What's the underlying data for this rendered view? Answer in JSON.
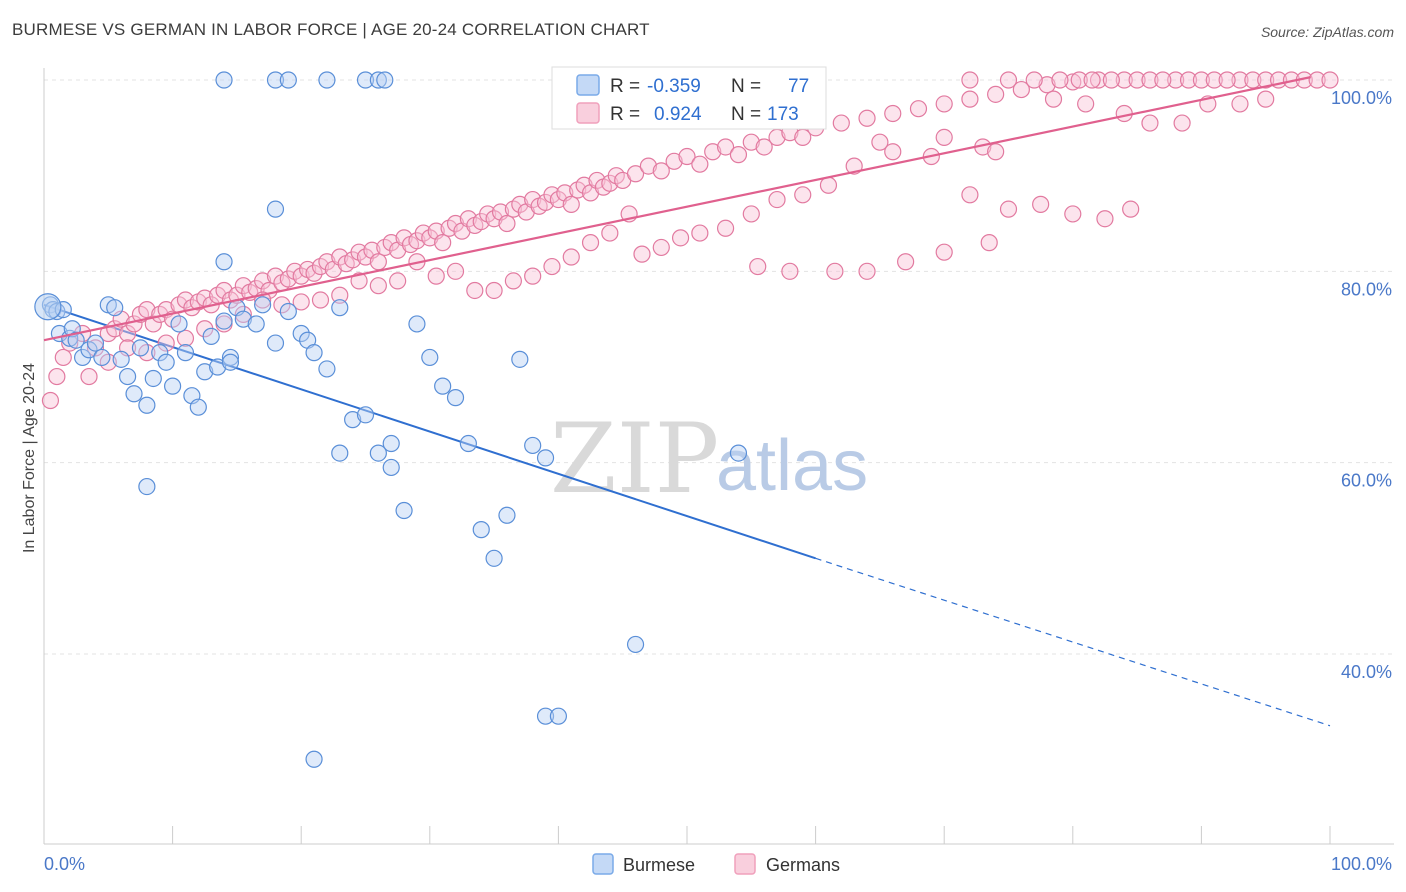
{
  "header": {
    "title": "BURMESE VS GERMAN IN LABOR FORCE | AGE 20-24 CORRELATION CHART",
    "source": "Source: ZipAtlas.com"
  },
  "watermark": {
    "zip": "ZIP",
    "atlas": "atlas"
  },
  "legend_top": {
    "rows": [
      {
        "r_label": "R =",
        "r_value": "-0.359",
        "n_label": "N =",
        "n_value": "77",
        "color": "#7aaae8"
      },
      {
        "r_label": "R =",
        "r_value": "0.924",
        "n_label": "N =",
        "n_value": "173",
        "color": "#f0a0bc"
      }
    ]
  },
  "legend_bottom": [
    {
      "label": "Burmese",
      "color": "#7aaae8"
    },
    {
      "label": "Germans",
      "color": "#f0a0bc"
    }
  ],
  "chart_data": {
    "type": "scatter",
    "title": "BURMESE VS GERMAN IN LABOR FORCE | AGE 20-24 CORRELATION CHART",
    "xlabel": "",
    "ylabel": "In Labor Force | Age 20-24",
    "xlim": [
      0,
      100
    ],
    "ylim": [
      20,
      104
    ],
    "x_tick_labels": [
      {
        "value": 0,
        "label": "0.0%"
      },
      {
        "value": 100,
        "label": "100.0%"
      }
    ],
    "y_tick_labels": [
      {
        "value": 40,
        "label": "40.0%"
      },
      {
        "value": 60,
        "label": "60.0%"
      },
      {
        "value": 80,
        "label": "80.0%"
      },
      {
        "value": 100,
        "label": "100.0%"
      }
    ],
    "grid": true,
    "series": [
      {
        "name": "Burmese",
        "color": "#7aaae8",
        "stroke": "#5a8fd8",
        "trend": {
          "x0": 0,
          "y0": 76.5,
          "x1": 60,
          "y1": 50.0,
          "dash_to_x": 100,
          "dash_to_y": 32.5,
          "color": "#2f6fd0"
        },
        "points": [
          [
            0.5,
            76.5
          ],
          [
            0.7,
            76.0
          ],
          [
            1.0,
            75.8
          ],
          [
            1.2,
            73.5
          ],
          [
            1.5,
            76.0
          ],
          [
            2.0,
            73.0
          ],
          [
            2.2,
            74.0
          ],
          [
            2.5,
            72.8
          ],
          [
            3.0,
            71.0
          ],
          [
            3.5,
            71.8
          ],
          [
            4.0,
            72.5
          ],
          [
            4.5,
            71.0
          ],
          [
            5.0,
            76.5
          ],
          [
            5.5,
            76.2
          ],
          [
            6.0,
            70.8
          ],
          [
            6.5,
            69.0
          ],
          [
            7.0,
            67.2
          ],
          [
            7.5,
            72.0
          ],
          [
            8.0,
            66.0
          ],
          [
            8.5,
            68.8
          ],
          [
            9.0,
            71.5
          ],
          [
            9.5,
            70.5
          ],
          [
            10.0,
            68.0
          ],
          [
            10.5,
            74.5
          ],
          [
            11.0,
            71.5
          ],
          [
            11.5,
            67.0
          ],
          [
            12.0,
            65.8
          ],
          [
            12.5,
            69.5
          ],
          [
            13.0,
            73.2
          ],
          [
            13.5,
            70.0
          ],
          [
            14.0,
            74.8
          ],
          [
            14.5,
            71.0
          ],
          [
            15.0,
            76.2
          ],
          [
            15.5,
            75.0
          ],
          [
            16.5,
            74.5
          ],
          [
            17.0,
            76.5
          ],
          [
            18.0,
            72.5
          ],
          [
            19.0,
            75.8
          ],
          [
            20.0,
            73.5
          ],
          [
            20.5,
            72.8
          ],
          [
            21.0,
            71.5
          ],
          [
            22.0,
            69.8
          ],
          [
            23.0,
            76.2
          ],
          [
            24.0,
            64.5
          ],
          [
            25.0,
            65.0
          ],
          [
            26.0,
            61.0
          ],
          [
            27.0,
            59.5
          ],
          [
            28.0,
            55.0
          ],
          [
            29.0,
            74.5
          ],
          [
            30.0,
            71.0
          ],
          [
            31.0,
            68.0
          ],
          [
            32.0,
            66.8
          ],
          [
            33.0,
            62.0
          ],
          [
            34.0,
            53.0
          ],
          [
            35.0,
            50.0
          ],
          [
            36.0,
            54.5
          ],
          [
            37.0,
            70.8
          ],
          [
            38.0,
            61.8
          ],
          [
            39.0,
            60.5
          ],
          [
            8.0,
            57.5
          ],
          [
            14.0,
            81.0
          ],
          [
            14.5,
            70.5
          ],
          [
            18.0,
            86.5
          ],
          [
            14.0,
            100
          ],
          [
            18.0,
            100
          ],
          [
            19.0,
            100
          ],
          [
            22.0,
            100
          ],
          [
            25.0,
            100
          ],
          [
            26.0,
            100
          ],
          [
            26.5,
            100
          ],
          [
            23.0,
            61.0
          ],
          [
            27.0,
            62.0
          ],
          [
            46.0,
            41.0
          ],
          [
            39.0,
            33.5
          ],
          [
            40.0,
            33.5
          ],
          [
            21.0,
            29.0
          ],
          [
            54.0,
            61.0
          ]
        ]
      },
      {
        "name": "Germans",
        "color": "#f0a0bc",
        "stroke": "#e27aa0",
        "trend": {
          "x0": 0,
          "y0": 72.8,
          "x1": 100,
          "y1": 100.3,
          "color": "#e0608e"
        },
        "points": [
          [
            0.5,
            66.5
          ],
          [
            1.0,
            69.0
          ],
          [
            1.5,
            71.0
          ],
          [
            2.0,
            72.5
          ],
          [
            3.0,
            73.5
          ],
          [
            3.5,
            69.0
          ],
          [
            4.0,
            72.0
          ],
          [
            5.0,
            73.5
          ],
          [
            5.5,
            74.0
          ],
          [
            6.0,
            75.0
          ],
          [
            6.5,
            73.5
          ],
          [
            7.0,
            74.5
          ],
          [
            7.5,
            75.5
          ],
          [
            8.0,
            76.0
          ],
          [
            8.5,
            74.5
          ],
          [
            9.0,
            75.5
          ],
          [
            9.5,
            76.0
          ],
          [
            10.0,
            75.0
          ],
          [
            10.5,
            76.5
          ],
          [
            11.0,
            77.0
          ],
          [
            11.5,
            76.2
          ],
          [
            12.0,
            76.8
          ],
          [
            12.5,
            77.2
          ],
          [
            13.0,
            76.5
          ],
          [
            13.5,
            77.5
          ],
          [
            14.0,
            78.0
          ],
          [
            14.5,
            77.0
          ],
          [
            15.0,
            77.5
          ],
          [
            15.5,
            78.5
          ],
          [
            16.0,
            77.8
          ],
          [
            16.5,
            78.2
          ],
          [
            17.0,
            79.0
          ],
          [
            17.5,
            78.0
          ],
          [
            18.0,
            79.5
          ],
          [
            18.5,
            78.8
          ],
          [
            19.0,
            79.2
          ],
          [
            19.5,
            80.0
          ],
          [
            20.0,
            79.5
          ],
          [
            20.5,
            80.2
          ],
          [
            21.0,
            79.8
          ],
          [
            21.5,
            80.5
          ],
          [
            22.0,
            81.0
          ],
          [
            22.5,
            80.2
          ],
          [
            23.0,
            81.5
          ],
          [
            23.5,
            80.8
          ],
          [
            24.0,
            81.2
          ],
          [
            24.5,
            82.0
          ],
          [
            25.0,
            81.5
          ],
          [
            25.5,
            82.2
          ],
          [
            26.0,
            81.0
          ],
          [
            26.5,
            82.5
          ],
          [
            27.0,
            83.0
          ],
          [
            27.5,
            82.2
          ],
          [
            28.0,
            83.5
          ],
          [
            28.5,
            82.8
          ],
          [
            29.0,
            83.2
          ],
          [
            29.5,
            84.0
          ],
          [
            30.0,
            83.5
          ],
          [
            30.5,
            84.2
          ],
          [
            31.0,
            83.0
          ],
          [
            31.5,
            84.5
          ],
          [
            32.0,
            85.0
          ],
          [
            32.5,
            84.2
          ],
          [
            33.0,
            85.5
          ],
          [
            33.5,
            84.8
          ],
          [
            34.0,
            85.2
          ],
          [
            34.5,
            86.0
          ],
          [
            35.0,
            85.5
          ],
          [
            35.5,
            86.2
          ],
          [
            36.0,
            85.0
          ],
          [
            36.5,
            86.5
          ],
          [
            37.0,
            87.0
          ],
          [
            37.5,
            86.2
          ],
          [
            38.0,
            87.5
          ],
          [
            38.5,
            86.8
          ],
          [
            39.0,
            87.2
          ],
          [
            39.5,
            88.0
          ],
          [
            40.0,
            87.5
          ],
          [
            40.5,
            88.2
          ],
          [
            41.0,
            87.0
          ],
          [
            41.5,
            88.5
          ],
          [
            42.0,
            89.0
          ],
          [
            42.5,
            88.2
          ],
          [
            43.0,
            89.5
          ],
          [
            43.5,
            88.8
          ],
          [
            44.0,
            89.2
          ],
          [
            44.5,
            90.0
          ],
          [
            45.0,
            89.5
          ],
          [
            46.0,
            90.2
          ],
          [
            47.0,
            91.0
          ],
          [
            48.0,
            90.5
          ],
          [
            49.0,
            91.5
          ],
          [
            50.0,
            92.0
          ],
          [
            51.0,
            91.2
          ],
          [
            52.0,
            92.5
          ],
          [
            53.0,
            93.0
          ],
          [
            54.0,
            92.2
          ],
          [
            55.0,
            93.5
          ],
          [
            56.0,
            93.0
          ],
          [
            57.0,
            94.0
          ],
          [
            58.0,
            94.5
          ],
          [
            59.0,
            94.0
          ],
          [
            60.0,
            95.0
          ],
          [
            62.0,
            95.5
          ],
          [
            64.0,
            96.0
          ],
          [
            66.0,
            96.5
          ],
          [
            68.0,
            97.0
          ],
          [
            70.0,
            97.5
          ],
          [
            72.0,
            98.0
          ],
          [
            74.0,
            98.5
          ],
          [
            76.0,
            99.0
          ],
          [
            78.0,
            99.5
          ],
          [
            80.0,
            99.8
          ],
          [
            82.0,
            100
          ],
          [
            84.0,
            100
          ],
          [
            85.0,
            100
          ],
          [
            86.0,
            100
          ],
          [
            88.0,
            100
          ],
          [
            89.0,
            100
          ],
          [
            90.0,
            100
          ],
          [
            91.0,
            100
          ],
          [
            93.0,
            100
          ],
          [
            94.0,
            100
          ],
          [
            95.0,
            100
          ],
          [
            96.0,
            100
          ],
          [
            97.0,
            100
          ],
          [
            98.0,
            100
          ],
          [
            99.0,
            100
          ],
          [
            100.0,
            100
          ],
          [
            72.0,
            100
          ],
          [
            75.0,
            100
          ],
          [
            77.0,
            100
          ],
          [
            79.0,
            100
          ],
          [
            80.5,
            100
          ],
          [
            81.5,
            100
          ],
          [
            83.0,
            100
          ],
          [
            87.0,
            100
          ],
          [
            92.0,
            100
          ],
          [
            78.5,
            98.0
          ],
          [
            81.0,
            97.5
          ],
          [
            84.0,
            96.5
          ],
          [
            86.0,
            95.5
          ],
          [
            88.5,
            95.5
          ],
          [
            90.5,
            97.5
          ],
          [
            93.0,
            97.5
          ],
          [
            95.0,
            98.0
          ],
          [
            70.0,
            94.0
          ],
          [
            69.0,
            92.0
          ],
          [
            73.0,
            93.0
          ],
          [
            74.0,
            92.5
          ],
          [
            65.0,
            93.5
          ],
          [
            66.0,
            92.5
          ],
          [
            63.0,
            91.0
          ],
          [
            61.0,
            89.0
          ],
          [
            59.0,
            88.0
          ],
          [
            57.0,
            87.5
          ],
          [
            55.0,
            86.0
          ],
          [
            53.0,
            84.5
          ],
          [
            51.0,
            84.0
          ],
          [
            49.5,
            83.5
          ],
          [
            48.0,
            82.5
          ],
          [
            46.5,
            81.8
          ],
          [
            45.5,
            86.0
          ],
          [
            44.0,
            84.0
          ],
          [
            42.5,
            83.0
          ],
          [
            41.0,
            81.5
          ],
          [
            39.5,
            80.5
          ],
          [
            38.0,
            79.5
          ],
          [
            36.5,
            79.0
          ],
          [
            35.0,
            78.0
          ],
          [
            33.5,
            78.0
          ],
          [
            32.0,
            80.0
          ],
          [
            30.5,
            79.5
          ],
          [
            29.0,
            81.0
          ],
          [
            27.5,
            79.0
          ],
          [
            26.0,
            78.5
          ],
          [
            24.5,
            79.0
          ],
          [
            23.0,
            77.5
          ],
          [
            21.5,
            77.0
          ],
          [
            20.0,
            76.8
          ],
          [
            18.5,
            76.5
          ],
          [
            17.0,
            77.0
          ],
          [
            15.5,
            75.5
          ],
          [
            14.0,
            74.5
          ],
          [
            12.5,
            74.0
          ],
          [
            11.0,
            73.0
          ],
          [
            9.5,
            72.5
          ],
          [
            8.0,
            71.5
          ],
          [
            6.5,
            72.0
          ],
          [
            5.0,
            70.5
          ],
          [
            72.0,
            88.0
          ],
          [
            75.0,
            86.5
          ],
          [
            77.5,
            87.0
          ],
          [
            80.0,
            86.0
          ],
          [
            82.5,
            85.5
          ],
          [
            84.5,
            86.5
          ],
          [
            73.5,
            83.0
          ],
          [
            70.0,
            82.0
          ],
          [
            67.0,
            81.0
          ],
          [
            64.0,
            80.0
          ],
          [
            61.5,
            80.0
          ],
          [
            58.0,
            80.0
          ],
          [
            55.5,
            80.5
          ]
        ]
      }
    ]
  }
}
